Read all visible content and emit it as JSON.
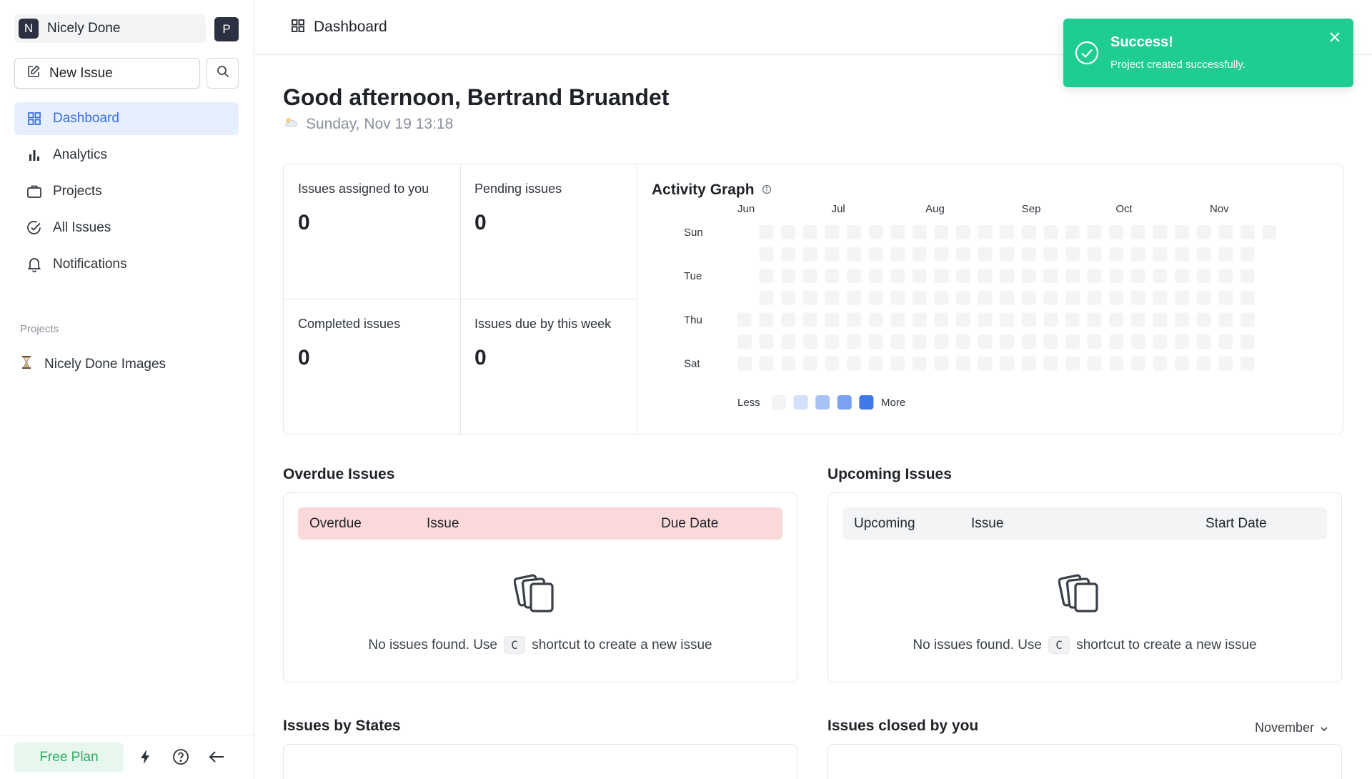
{
  "sidebar": {
    "workspace": {
      "initial": "N",
      "name": "Nicely Done"
    },
    "user_initial": "P",
    "new_issue_label": "New Issue",
    "nav": [
      {
        "label": "Dashboard",
        "icon": "grid-icon",
        "active": true
      },
      {
        "label": "Analytics",
        "icon": "bar-chart-icon",
        "active": false
      },
      {
        "label": "Projects",
        "icon": "briefcase-icon",
        "active": false
      },
      {
        "label": "All Issues",
        "icon": "check-circle-icon",
        "active": false
      },
      {
        "label": "Notifications",
        "icon": "bell-icon",
        "active": false
      }
    ],
    "projects_title": "Projects",
    "projects": [
      {
        "label": "Nicely Done Images",
        "icon": "hourglass-icon"
      }
    ],
    "free_plan_label": "Free Plan"
  },
  "header": {
    "title": "Dashboard"
  },
  "toast": {
    "title": "Success!",
    "message": "Project created successfully.",
    "color": "#1fcc93"
  },
  "greeting": {
    "text": "Good afternoon, Bertrand Bruandet",
    "date": "Sunday, Nov 19 13:18"
  },
  "stats": [
    {
      "label": "Issues assigned to you",
      "value": "0"
    },
    {
      "label": "Pending issues",
      "value": "0"
    },
    {
      "label": "Completed issues",
      "value": "0"
    },
    {
      "label": "Issues due by this week",
      "value": "0"
    }
  ],
  "activity": {
    "title": "Activity Graph",
    "months": [
      "Jun",
      "Jul",
      "Aug",
      "Sep",
      "Oct",
      "Nov"
    ],
    "days": [
      "Sun",
      "Tue",
      "Thu",
      "Sat"
    ],
    "legend_less": "Less",
    "legend_more": "More",
    "legend_colors": [
      "#f3f4f6",
      "#d3e0fb",
      "#a9c2f6",
      "#7aa2f0",
      "#3f78e9"
    ],
    "cell_color": "#f3f4f6"
  },
  "overdue": {
    "title": "Overdue Issues",
    "columns": [
      "Overdue",
      "Issue",
      "Due Date"
    ],
    "empty_before": "No issues found. Use",
    "shortcut": "C",
    "empty_after": "shortcut to create a new issue"
  },
  "upcoming": {
    "title": "Upcoming Issues",
    "columns": [
      "Upcoming",
      "Issue",
      "Start Date"
    ],
    "empty_before": "No issues found. Use",
    "shortcut": "C",
    "empty_after": "shortcut to create a new issue"
  },
  "states": {
    "title": "Issues by States"
  },
  "closed": {
    "title": "Issues closed by you",
    "month": "November"
  }
}
